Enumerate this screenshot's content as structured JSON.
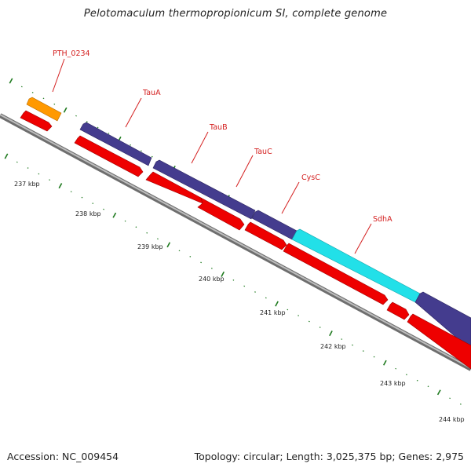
{
  "title": "Pelotomaculum thermopropionicum SI, complete genome",
  "footer": {
    "accession": "Accession: NC_009454",
    "summary": "Topology: circular; Length: 3,025,375 bp; Genes: 2,975"
  },
  "colors": {
    "backbone": "#8c8c8c",
    "backbone_light": "#c8c8c8",
    "tick": "#1f7a1f",
    "label": "#d42020",
    "gene_red": "#ee0000",
    "gene_orange": "#ff9900",
    "gene_purple": "#443c8e",
    "gene_cyan": "#22e0e8"
  },
  "scale_labels": [
    "237 kbp",
    "238 kbp",
    "239 kbp",
    "240 kbp",
    "241 kbp",
    "242 kbp",
    "243 kbp",
    "244 kbp"
  ],
  "gene_labels": [
    "PTH_0234",
    "TauA",
    "TauB",
    "TauC",
    "CysC",
    "SdhA"
  ]
}
